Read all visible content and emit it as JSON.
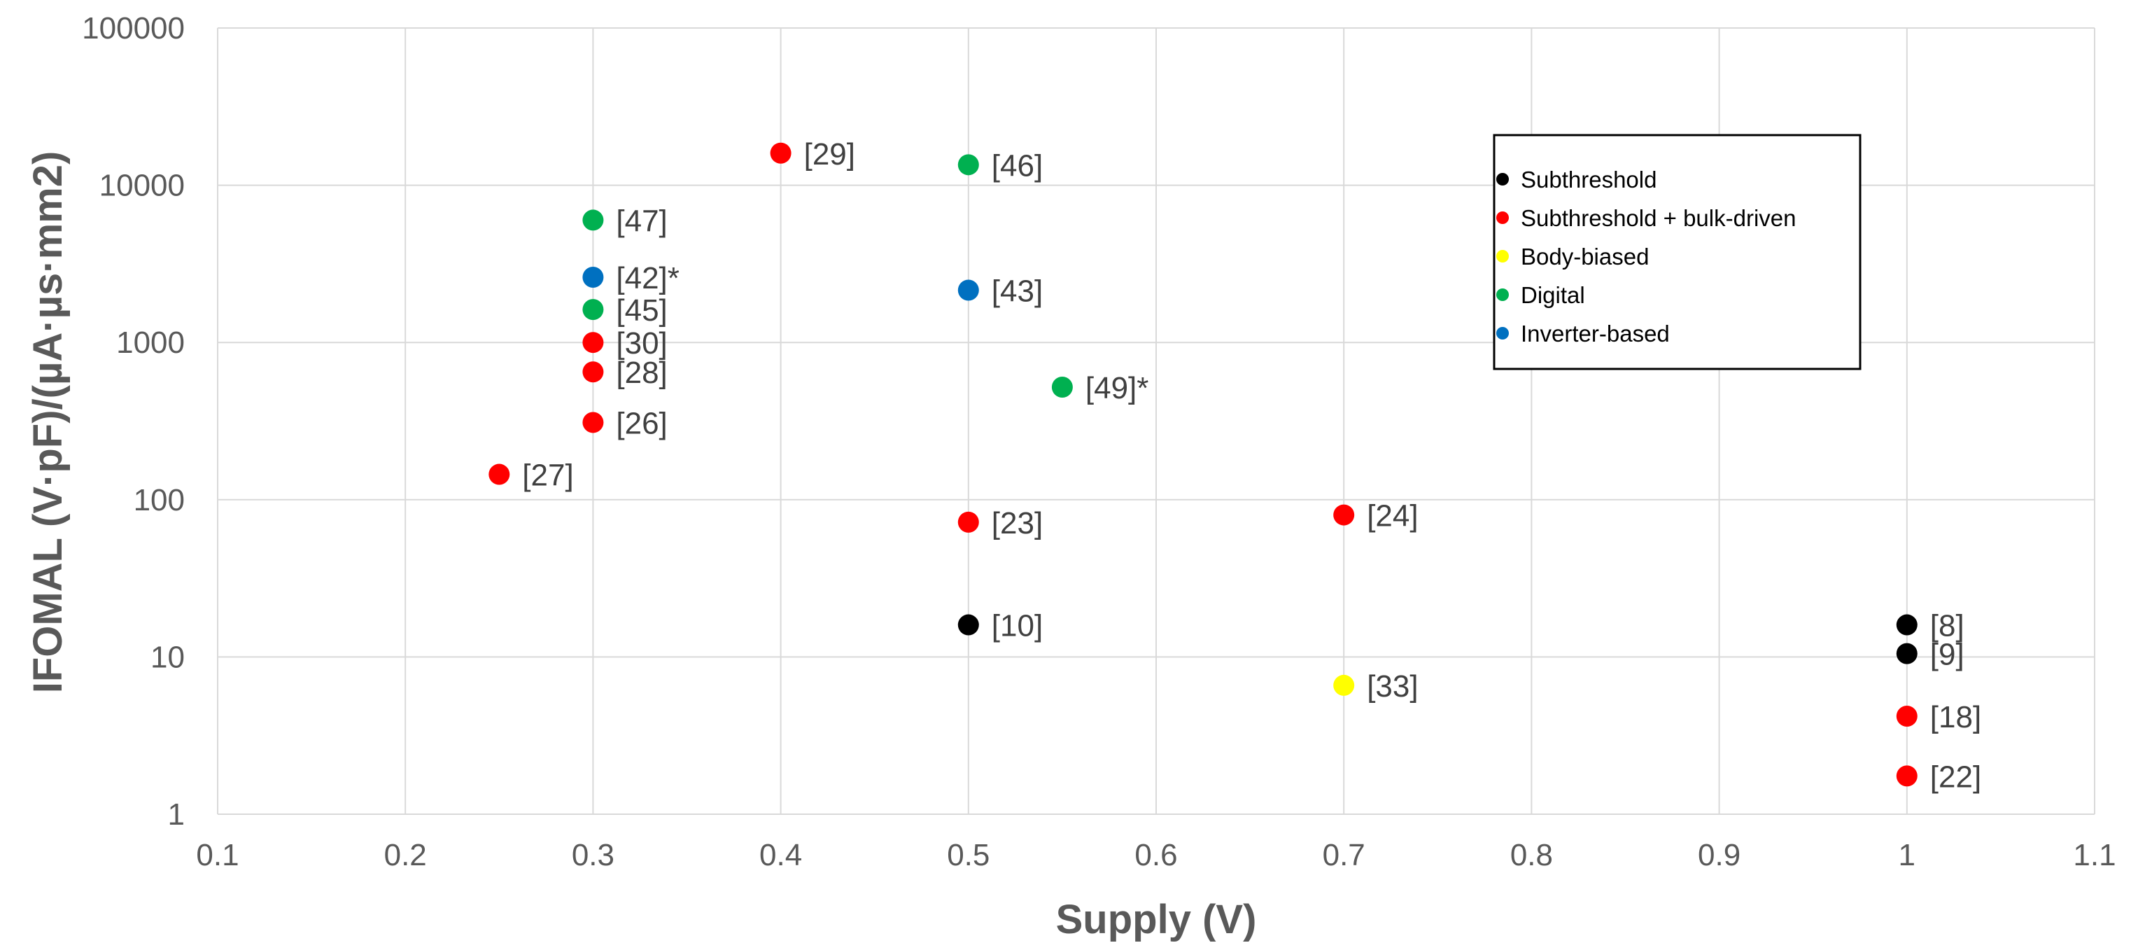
{
  "chart_data": {
    "type": "scatter",
    "title": "",
    "xlabel": "Supply (V)",
    "ylabel": "IFOMAL (V·pF)/(µA·µs·mm2)",
    "x_scale": "linear",
    "y_scale": "log",
    "xlim": [
      0.1,
      1.1
    ],
    "ylim": [
      1,
      100000
    ],
    "x_ticks": [
      "0.1",
      "0.2",
      "0.3",
      "0.4",
      "0.5",
      "0.6",
      "0.7",
      "0.8",
      "0.9",
      "1",
      "1.1"
    ],
    "y_ticks": [
      "1",
      "10",
      "100",
      "1000",
      "10000",
      "100000"
    ],
    "grid": true,
    "legend_position": "top-right",
    "series": [
      {
        "name": "Subthreshold",
        "color": "#000000",
        "points": [
          {
            "x": 0.5,
            "y": 16,
            "label": "[10]"
          },
          {
            "x": 1.0,
            "y": 16,
            "label": "[8]"
          },
          {
            "x": 1.0,
            "y": 10.5,
            "label": "[9]"
          }
        ]
      },
      {
        "name": "Subthreshold + bulk-driven",
        "color": "#ff0000",
        "points": [
          {
            "x": 0.4,
            "y": 16000,
            "label": "[29]"
          },
          {
            "x": 0.3,
            "y": 1000,
            "label": "[30]"
          },
          {
            "x": 0.3,
            "y": 650,
            "label": "[28]"
          },
          {
            "x": 0.3,
            "y": 310,
            "label": "[26]"
          },
          {
            "x": 0.25,
            "y": 145,
            "label": "[27]"
          },
          {
            "x": 0.5,
            "y": 72,
            "label": "[23]"
          },
          {
            "x": 0.7,
            "y": 80,
            "label": "[24]"
          },
          {
            "x": 1.0,
            "y": 4.2,
            "label": "[18]"
          },
          {
            "x": 1.0,
            "y": 1.75,
            "label": "[22]"
          }
        ]
      },
      {
        "name": "Body-biased",
        "color": "#ffff00",
        "points": [
          {
            "x": 0.7,
            "y": 6.6,
            "label": "[33]"
          }
        ]
      },
      {
        "name": "Digital",
        "color": "#00b050",
        "points": [
          {
            "x": 0.5,
            "y": 13500,
            "label": "[46]"
          },
          {
            "x": 0.3,
            "y": 6000,
            "label": "[47]"
          },
          {
            "x": 0.3,
            "y": 1620,
            "label": "[45]"
          },
          {
            "x": 0.55,
            "y": 520,
            "label": "[49]*"
          }
        ]
      },
      {
        "name": "Inverter-based",
        "color": "#0070c0",
        "points": [
          {
            "x": 0.3,
            "y": 2600,
            "label": "[42]*"
          },
          {
            "x": 0.5,
            "y": 2150,
            "label": "[43]"
          }
        ]
      }
    ]
  }
}
